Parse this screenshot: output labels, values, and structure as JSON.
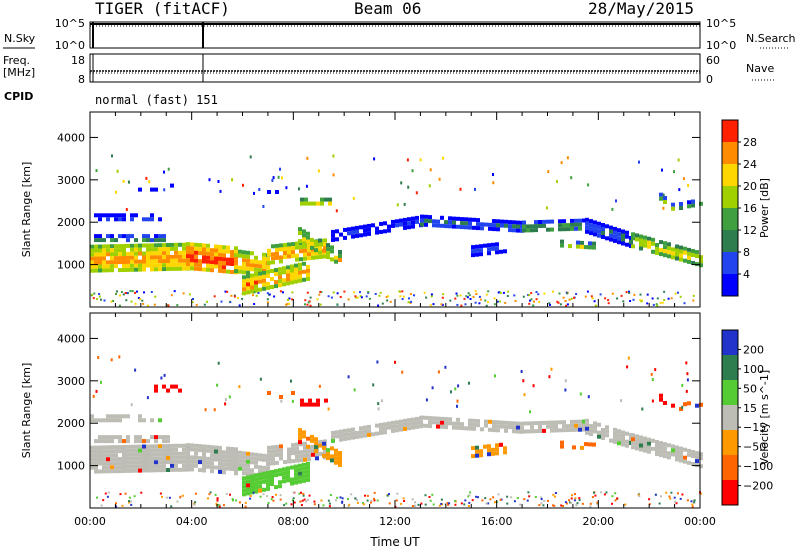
{
  "header": {
    "radar": "TIGER (fitACF)",
    "beam": "Beam 06",
    "date": "28/May/2015"
  },
  "colors": {
    "power": [
      "#0000ff",
      "#2244ee",
      "#2e7d4f",
      "#40a040",
      "#a0d000",
      "#ffd700",
      "#ff8c00",
      "#ff2000"
    ],
    "velocity": [
      "#2233cc",
      "#2e7d4f",
      "#55cc33",
      "#bdbdb5",
      "#ff9900",
      "#ff6600",
      "#ff0000"
    ]
  },
  "chart_data": [
    {
      "type": "line",
      "panel": "N.Sky / N.Search",
      "left_label": "N.Sky",
      "right_label": "N.Search",
      "left_ticks": [
        "10^5",
        "10^0"
      ],
      "right_ticks": [
        "10^5",
        "10^0"
      ],
      "grid": false
    },
    {
      "type": "line",
      "panel": "Freq / Nave",
      "left_label_lines": [
        "Freq.",
        "[MHz]"
      ],
      "right_label": "Nave",
      "left_ticks": [
        "18",
        "8"
      ],
      "right_ticks": [
        "60",
        "0"
      ],
      "grid": false
    },
    {
      "type": "table",
      "panel": "CPID",
      "label": "CPID",
      "value": "normal (fast) 151"
    },
    {
      "type": "scatter",
      "panel": "Power",
      "ylabel": "Slant Range [km]",
      "ylim": [
        0,
        4600
      ],
      "yticks": [
        1000,
        2000,
        3000,
        4000
      ],
      "xlim": [
        0,
        24
      ],
      "colorbar_label": "Power [dB]",
      "colorbar_ticks": [
        "4",
        "8",
        "12",
        "16",
        "20",
        "24",
        "28"
      ],
      "grid": false
    },
    {
      "type": "scatter",
      "panel": "Velocity",
      "ylabel": "Slant Range [km]",
      "ylim": [
        0,
        4600
      ],
      "yticks": [
        1000,
        2000,
        3000,
        4000
      ],
      "xlim": [
        0,
        24
      ],
      "xlabel": "Time UT",
      "xticks": [
        "00:00",
        "04:00",
        "08:00",
        "12:00",
        "16:00",
        "20:00",
        "00:00"
      ],
      "colorbar_label": "Velocity [m s^-1]",
      "colorbar_ticks": [
        "200",
        "100",
        "50",
        "15",
        "−15",
        "−50",
        "−100",
        "−200"
      ],
      "grid": false
    }
  ]
}
